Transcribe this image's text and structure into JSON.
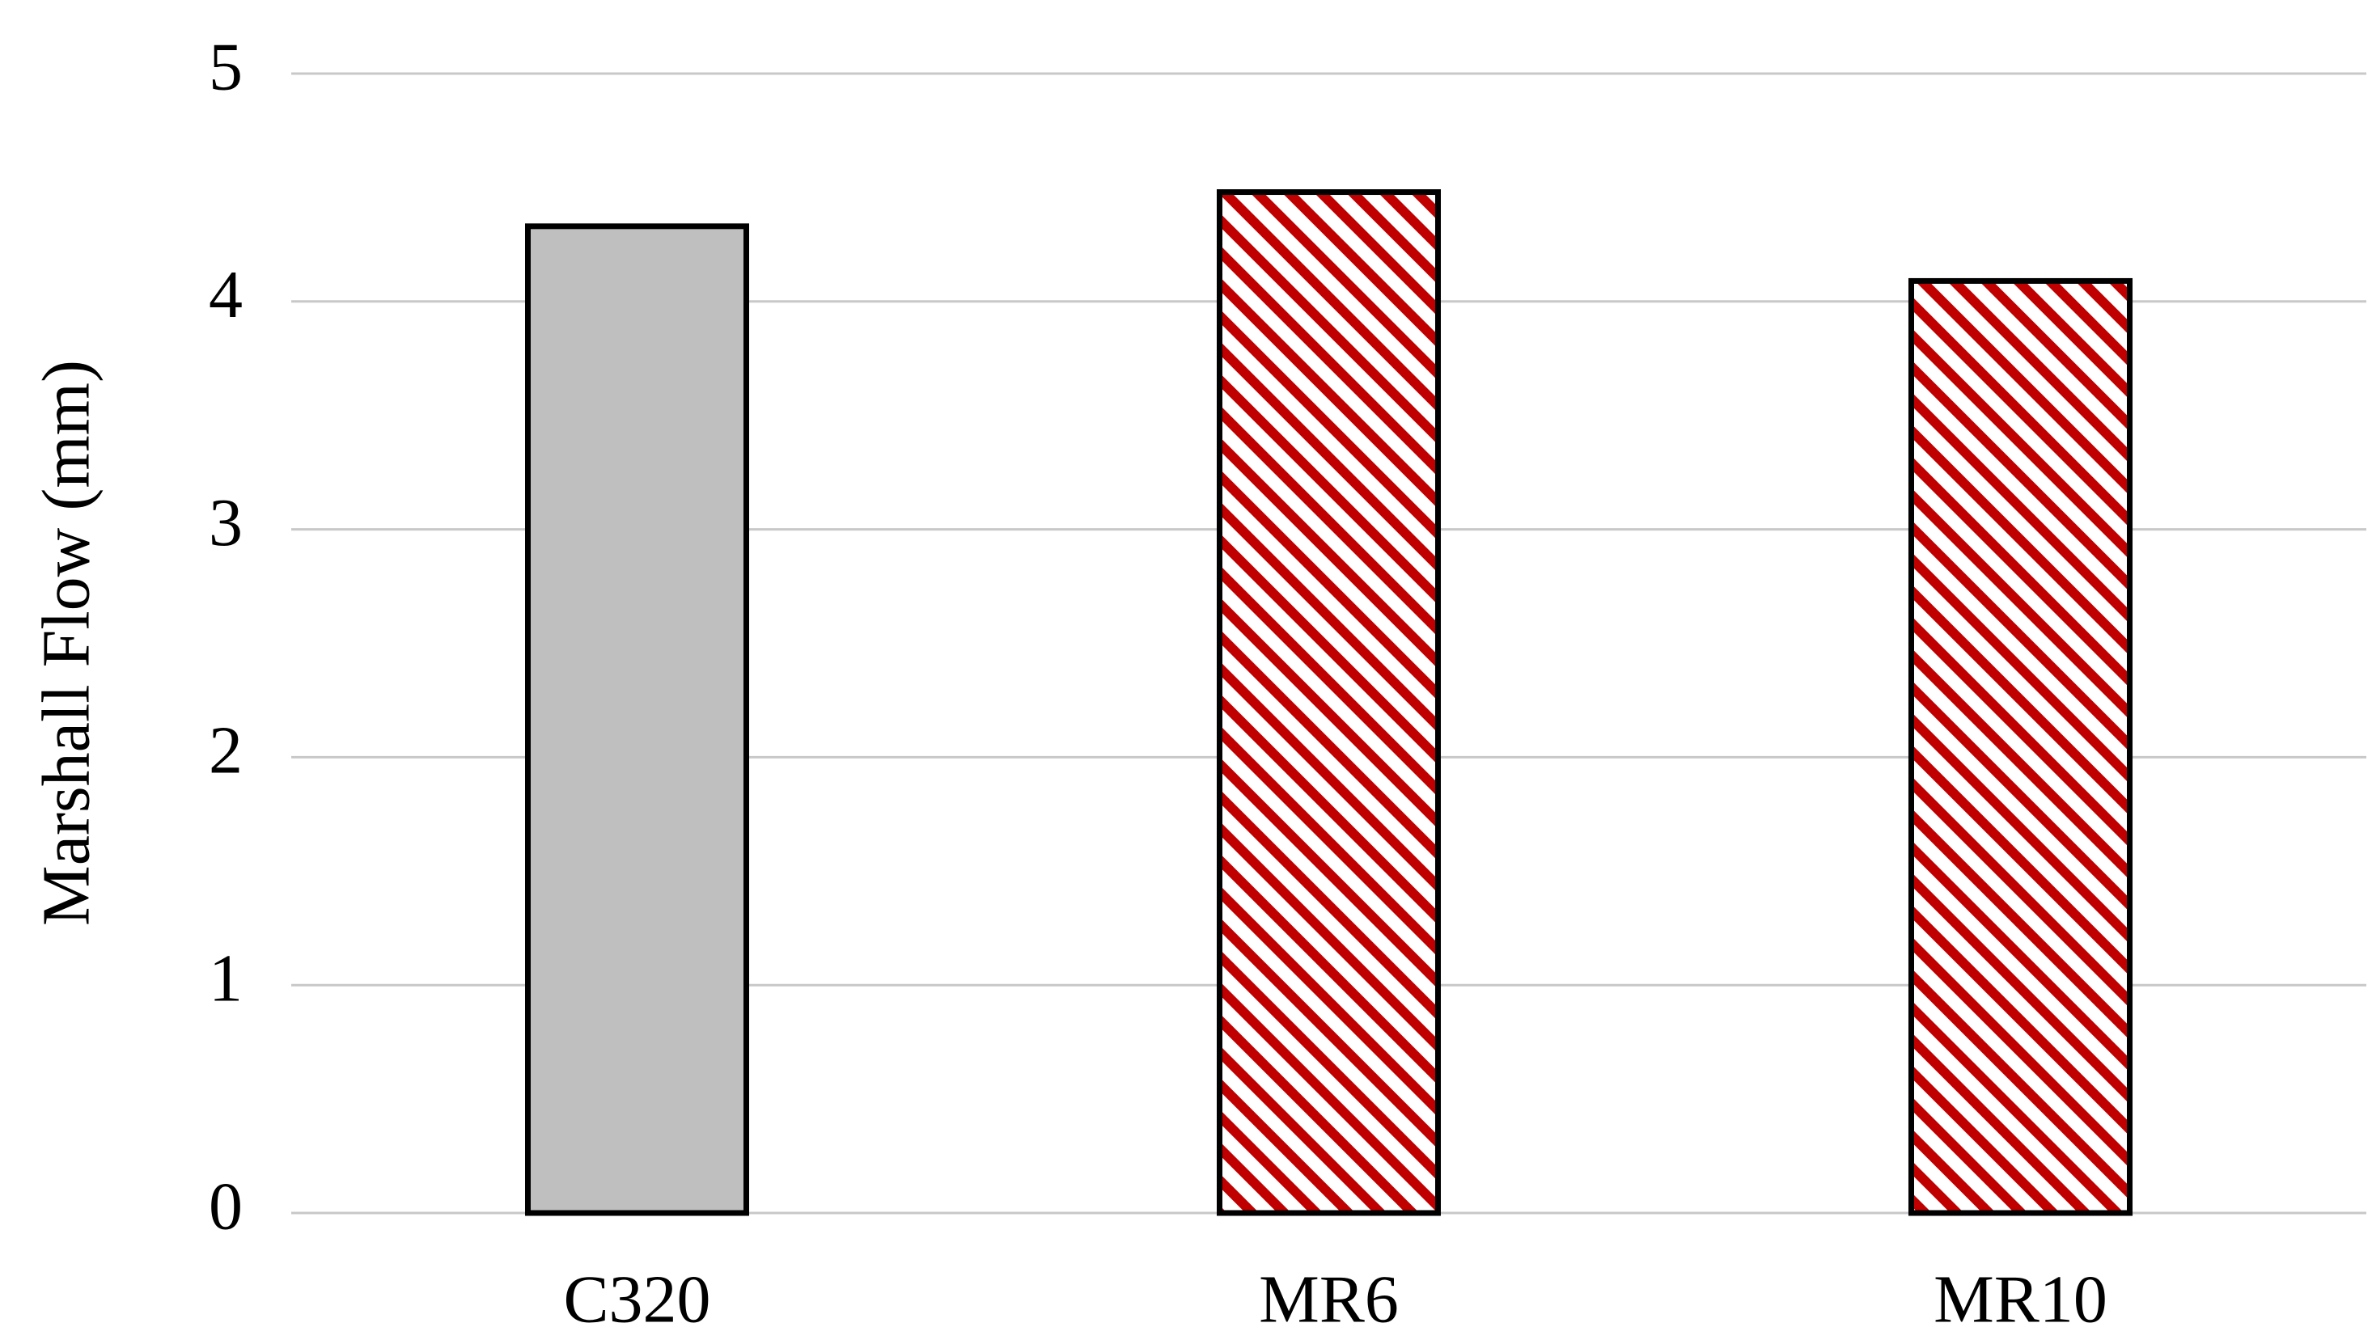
{
  "chart_data": {
    "type": "bar",
    "y_label": "Marshall Flow (mm)",
    "categories": [
      "C320",
      "MR6",
      "MR10"
    ],
    "values": [
      4.33,
      4.48,
      4.09
    ],
    "colors": [
      "#bfbfbf",
      "#c00000",
      "#c00000"
    ],
    "hatch": [
      false,
      true,
      true
    ],
    "ylim": [
      0,
      5
    ],
    "yticks": [
      0,
      1,
      2,
      3,
      4,
      5
    ],
    "grid": true
  }
}
